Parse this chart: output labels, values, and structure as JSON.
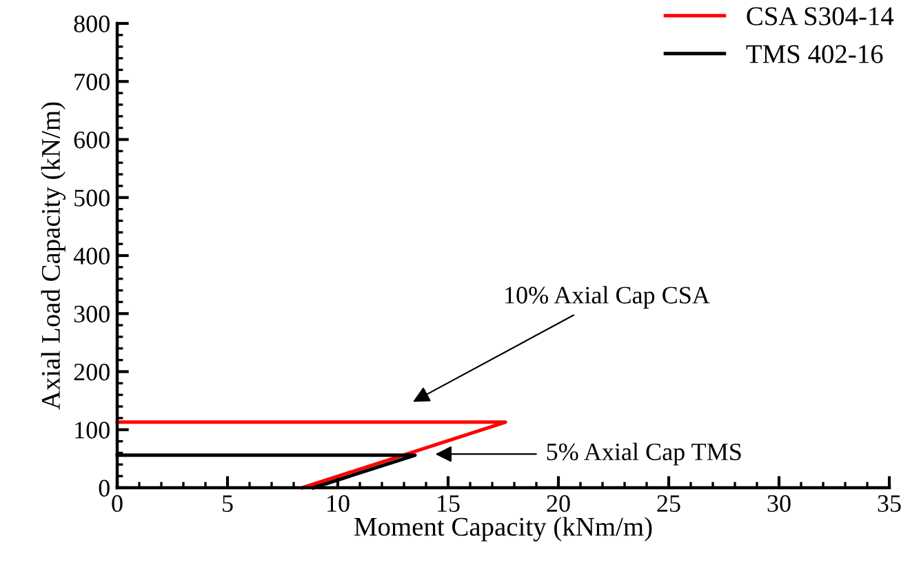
{
  "chart_data": {
    "type": "line",
    "xlabel": "Moment Capacity (kNm/m)",
    "ylabel": "Axial Load Capacity (kN/m)",
    "series": [
      {
        "name": "CSA S304-14",
        "color": "#ff0000",
        "x": [
          8.4,
          17.6,
          0
        ],
        "values": [
          0,
          113,
          113
        ]
      },
      {
        "name": "TMS 402-16",
        "color": "#000000",
        "x": [
          8.9,
          13.5,
          0
        ],
        "values": [
          0,
          56,
          56
        ]
      }
    ],
    "xlim": [
      0,
      35
    ],
    "xticks": [
      0,
      5,
      10,
      15,
      20,
      25,
      30,
      35
    ],
    "ylim": [
      0,
      800
    ],
    "yticks": [
      0,
      100,
      200,
      300,
      400,
      500,
      600,
      700,
      800
    ],
    "annotations": [
      "10% Axial Cap CSA",
      "5% Axial Cap TMS"
    ],
    "grid": false,
    "legend": "top right",
    "marker": "none",
    "line_style": "solid"
  }
}
